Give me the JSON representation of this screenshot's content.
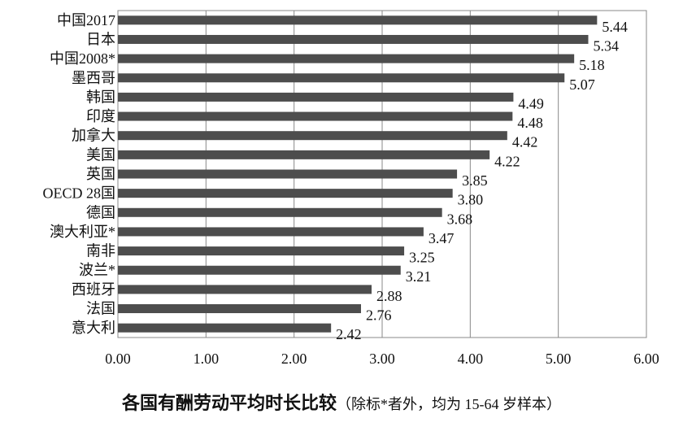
{
  "chart_data": {
    "type": "bar",
    "orientation": "horizontal",
    "categories": [
      "中国2017",
      "日本",
      "中国2008*",
      "墨西哥",
      "韩国",
      "印度",
      "加拿大",
      "美国",
      "英国",
      "OECD 28国",
      "德国",
      "澳大利亚*",
      "南非",
      "波兰*",
      "西班牙",
      "法国",
      "意大利"
    ],
    "values": [
      5.44,
      5.34,
      5.18,
      5.07,
      4.49,
      4.48,
      4.42,
      4.22,
      3.85,
      3.8,
      3.68,
      3.47,
      3.25,
      3.21,
      2.88,
      2.76,
      2.42
    ],
    "value_labels": [
      "5.44",
      "5.34",
      "5.18",
      "5.07",
      "4.49",
      "4.48",
      "4.42",
      "4.22",
      "3.85",
      "3.80",
      "3.68",
      "3.47",
      "3.25",
      "3.21",
      "2.88",
      "2.76",
      "2.42"
    ],
    "xlim": [
      0,
      6
    ],
    "xticks": [
      "0.00",
      "1.00",
      "2.00",
      "3.00",
      "4.00",
      "5.00",
      "6.00"
    ],
    "grid": "vertical",
    "bar_color": "#4d4d4d"
  },
  "caption": {
    "title": "各国有酬劳动平均时长比较",
    "note": "（除标*者外，均为 15-64 岁样本）"
  }
}
